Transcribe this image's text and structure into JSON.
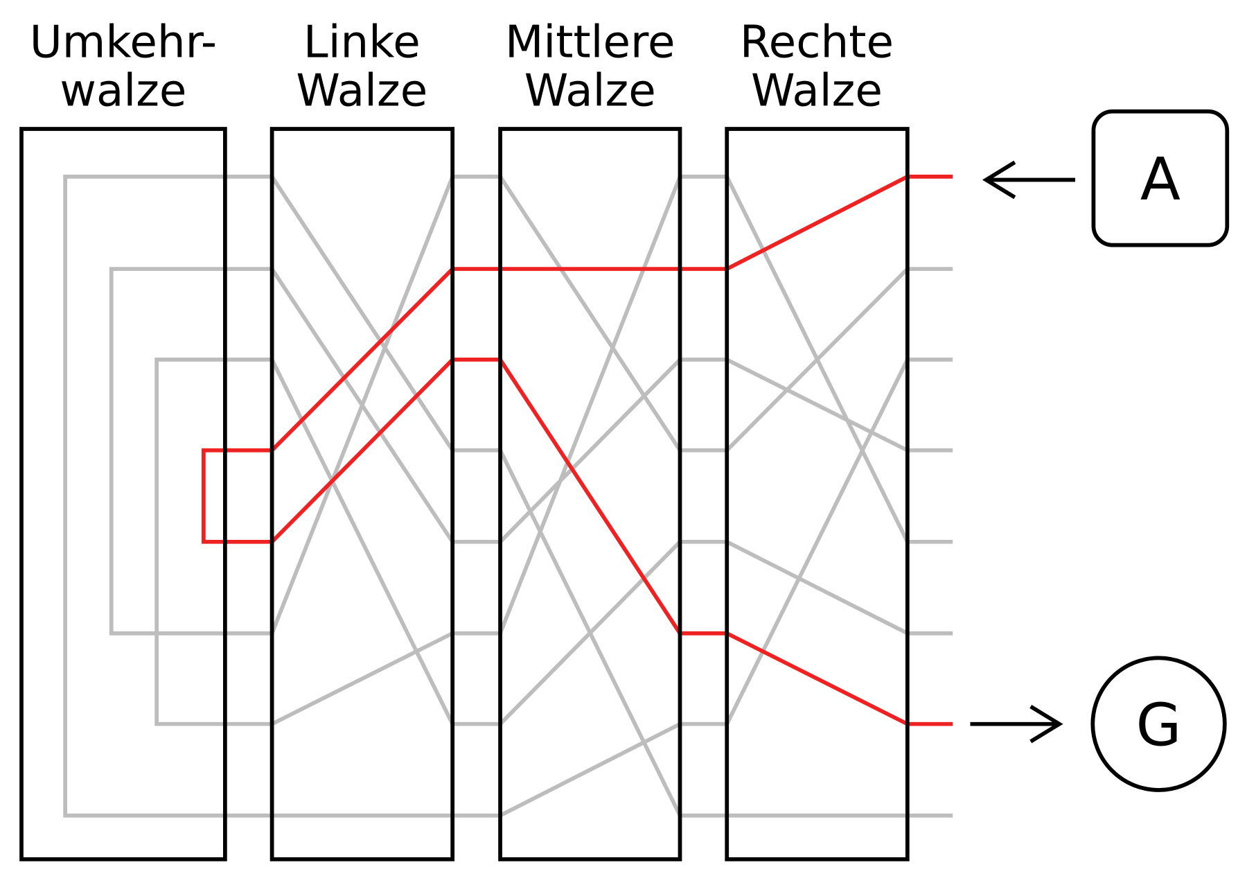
{
  "rotors": [
    {
      "lines": [
        "Umkehr-",
        "walze"
      ]
    },
    {
      "lines": [
        "Linke",
        "Walze"
      ]
    },
    {
      "lines": [
        "Mittlere",
        "Walze"
      ]
    },
    {
      "lines": [
        "Rechte",
        "Walze"
      ]
    }
  ],
  "keys": {
    "input": "A",
    "output": "G"
  }
}
